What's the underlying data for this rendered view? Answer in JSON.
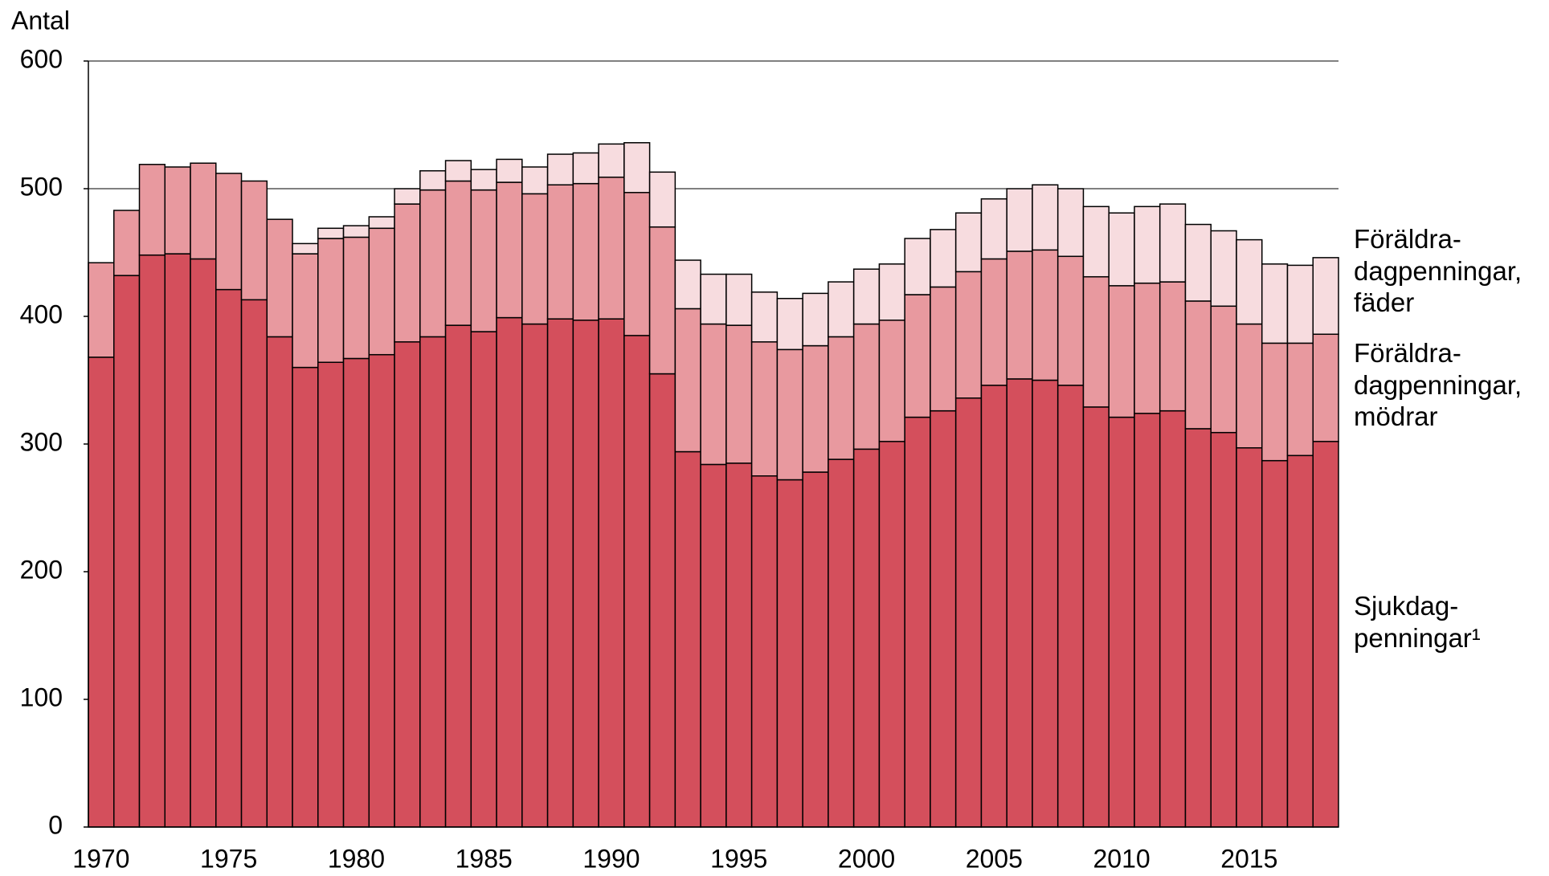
{
  "chart_data": {
    "type": "stacked_bar",
    "y_label": "Antal",
    "x": [
      1970,
      1971,
      1972,
      1973,
      1974,
      1975,
      1976,
      1977,
      1978,
      1979,
      1980,
      1981,
      1982,
      1983,
      1984,
      1985,
      1986,
      1987,
      1988,
      1989,
      1990,
      1991,
      1992,
      1993,
      1994,
      1995,
      1996,
      1997,
      1998,
      1999,
      2000,
      2001,
      2002,
      2003,
      2004,
      2005,
      2006,
      2007,
      2008,
      2009,
      2010,
      2011,
      2012,
      2013,
      2014,
      2015,
      2016,
      2017,
      2018
    ],
    "xlim": [
      1969.5,
      2018.5
    ],
    "xticks": [
      1970,
      1975,
      1980,
      1985,
      1990,
      1995,
      2000,
      2005,
      2010,
      2015
    ],
    "ylim": [
      0,
      600
    ],
    "yticks": [
      0,
      100,
      200,
      300,
      400,
      500,
      600
    ],
    "grid": true,
    "series": [
      {
        "name": "Sjukdag-\npenningar¹",
        "color": "#d44f5c",
        "values": [
          368,
          432,
          448,
          449,
          445,
          421,
          413,
          384,
          360,
          364,
          367,
          370,
          380,
          384,
          393,
          388,
          399,
          394,
          398,
          397,
          398,
          385,
          355,
          294,
          284,
          285,
          275,
          272,
          278,
          288,
          296,
          302,
          321,
          326,
          336,
          346,
          351,
          350,
          346,
          329,
          321,
          324,
          326,
          312,
          309,
          297,
          287,
          291,
          302
        ]
      },
      {
        "name": "Föräldra-\ndagpenningar,\nmödrar",
        "color": "#e8999f",
        "values": [
          74,
          51,
          71,
          68,
          75,
          91,
          93,
          92,
          89,
          97,
          95,
          99,
          108,
          115,
          113,
          111,
          106,
          102,
          105,
          107,
          111,
          112,
          115,
          112,
          110,
          108,
          105,
          102,
          99,
          96,
          98,
          95,
          96,
          97,
          99,
          99,
          100,
          102,
          101,
          102,
          103,
          102,
          101,
          100,
          99,
          97,
          92,
          88,
          84
        ]
      },
      {
        "name": "Föräldra-\ndagpenningar,\nfäder",
        "color": "#f7dcdf",
        "values": [
          0,
          0,
          0,
          0,
          0,
          0,
          0,
          0,
          8,
          8,
          9,
          9,
          12,
          15,
          16,
          16,
          18,
          21,
          24,
          24,
          26,
          39,
          43,
          38,
          39,
          40,
          39,
          40,
          41,
          43,
          43,
          44,
          44,
          45,
          46,
          47,
          49,
          51,
          53,
          55,
          57,
          60,
          61,
          60,
          59,
          66,
          62,
          61,
          60
        ]
      }
    ]
  }
}
